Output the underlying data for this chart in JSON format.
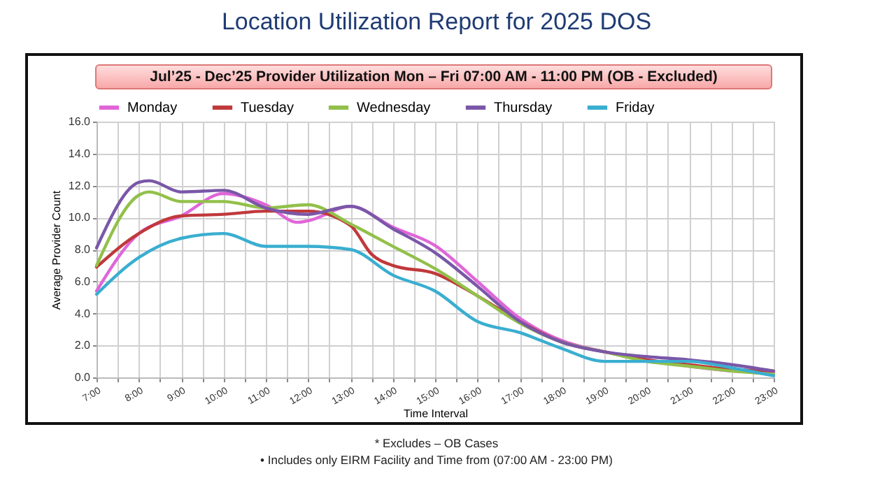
{
  "chart_data": {
    "type": "line",
    "title": "Location Utilization Report for 2025 DOS",
    "subtitle": "Jul’25 - Dec’25 Provider Utilization Mon – Fri 07:00 AM - 11:00 PM (OB - Excluded)",
    "xlabel": "Time Interval",
    "ylabel": "Average Provider Count",
    "annotations": [
      "* Excludes – OB Cases",
      "• Includes only EIRM Facility and Time from (07:00 AM - 23:00 PM)"
    ],
    "x": [
      7,
      8,
      9,
      10,
      11,
      12,
      13,
      14,
      15,
      16,
      17,
      18,
      19,
      20,
      21,
      22,
      23
    ],
    "series": [
      {
        "name": "Monday",
        "color": "#e066d8",
        "x": [
          7,
          8,
          9,
          10,
          11,
          11.75,
          12,
          13,
          14,
          15,
          16,
          17,
          18,
          19,
          20,
          21,
          22,
          23
        ],
        "values": [
          5.4,
          9.0,
          10.1,
          11.5,
          10.8,
          9.7,
          9.8,
          10.7,
          9.4,
          8.25,
          6.0,
          3.7,
          2.3,
          1.6,
          1.1,
          0.7,
          0.4,
          0.3
        ]
      },
      {
        "name": "Tuesday",
        "color": "#c0393b",
        "x": [
          7,
          8,
          9,
          10,
          11,
          12,
          13,
          13.5,
          14,
          15,
          16,
          17,
          18,
          19,
          20,
          21,
          22,
          23
        ],
        "values": [
          6.9,
          9.0,
          10.1,
          10.2,
          10.4,
          10.4,
          9.5,
          7.7,
          7.0,
          6.5,
          5.1,
          3.5,
          2.2,
          1.6,
          1.1,
          0.8,
          0.5,
          0.4
        ]
      },
      {
        "name": "Wednesday",
        "color": "#92c04a",
        "x": [
          7,
          8,
          8.25,
          9,
          10,
          11,
          12,
          13,
          14,
          15,
          16,
          17,
          18,
          19,
          20,
          21,
          22,
          23
        ],
        "values": [
          7.0,
          11.4,
          11.6,
          11.0,
          11.0,
          10.6,
          10.8,
          9.6,
          8.2,
          6.8,
          5.1,
          3.4,
          2.2,
          1.6,
          1.0,
          0.7,
          0.4,
          0.2
        ]
      },
      {
        "name": "Thursday",
        "color": "#7a57a8",
        "x": [
          7,
          8,
          8.25,
          9,
          10,
          11,
          12,
          13,
          14,
          15,
          16,
          17,
          18,
          19,
          20,
          21,
          22,
          23
        ],
        "values": [
          8.1,
          12.2,
          12.3,
          11.6,
          11.7,
          10.6,
          10.2,
          10.7,
          9.3,
          7.8,
          5.7,
          3.5,
          2.2,
          1.6,
          1.3,
          1.1,
          0.8,
          0.4
        ]
      },
      {
        "name": "Friday",
        "color": "#3aaed0",
        "values": [
          5.2,
          7.5,
          8.7,
          9.0,
          8.2,
          8.2,
          8.0,
          6.4,
          5.4,
          3.5,
          2.8,
          1.8,
          1.0,
          1.0,
          1.0,
          0.6,
          0.1
        ]
      }
    ],
    "xlim": [
      7,
      23
    ],
    "xticks": [
      {
        "value": 7,
        "label": "7:00"
      },
      {
        "value": 7.5,
        "label": null
      },
      {
        "value": 8,
        "label": "8:00"
      },
      {
        "value": 8.5,
        "label": null
      },
      {
        "value": 9,
        "label": "9:00"
      },
      {
        "value": 9.5,
        "label": null
      },
      {
        "value": 10,
        "label": "10:00"
      },
      {
        "value": 10.5,
        "label": null
      },
      {
        "value": 11,
        "label": "11:00"
      },
      {
        "value": 11.5,
        "label": null
      },
      {
        "value": 12,
        "label": "12:00"
      },
      {
        "value": 12.5,
        "label": null
      },
      {
        "value": 13,
        "label": "13:00"
      },
      {
        "value": 13.5,
        "label": null
      },
      {
        "value": 14,
        "label": "14:00"
      },
      {
        "value": 14.5,
        "label": null
      },
      {
        "value": 15,
        "label": "15:00"
      },
      {
        "value": 15.5,
        "label": null
      },
      {
        "value": 16,
        "label": "16:00"
      },
      {
        "value": 16.5,
        "label": null
      },
      {
        "value": 17,
        "label": "17:00"
      },
      {
        "value": 17.5,
        "label": null
      },
      {
        "value": 18,
        "label": "18:00"
      },
      {
        "value": 18.5,
        "label": null
      },
      {
        "value": 19,
        "label": "19:00"
      },
      {
        "value": 19.5,
        "label": null
      },
      {
        "value": 20,
        "label": "20:00"
      },
      {
        "value": 20.5,
        "label": null
      },
      {
        "value": 21,
        "label": "21:00"
      },
      {
        "value": 21.5,
        "label": null
      },
      {
        "value": 22,
        "label": "22:00"
      },
      {
        "value": 22.5,
        "label": null
      },
      {
        "value": 23,
        "label": "23:00"
      }
    ],
    "ylim": [
      0,
      16
    ],
    "yticks": [
      {
        "value": 0,
        "label": "0.0"
      },
      {
        "value": 2,
        "label": "2.0"
      },
      {
        "value": 4,
        "label": "4.0"
      },
      {
        "value": 6,
        "label": "6.0"
      },
      {
        "value": 8,
        "label": "8.0"
      },
      {
        "value": 10,
        "label": "10.0"
      },
      {
        "value": 12,
        "label": "12.0"
      },
      {
        "value": 14,
        "label": "14.0"
      },
      {
        "value": 16,
        "label": "16.0"
      }
    ],
    "grid": true,
    "legend": "top",
    "line_style": "solid",
    "marker": "none"
  }
}
